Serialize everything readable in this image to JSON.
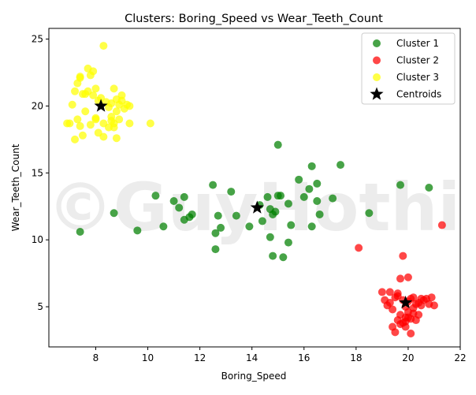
{
  "chart_data": {
    "type": "scatter",
    "title": "Clusters: Boring_Speed vs Wear_Teeth_Count",
    "xlabel": "Boring_Speed",
    "ylabel": "Wear_Teeth_Count",
    "xlim": [
      6.2,
      22.0
    ],
    "ylim": [
      2.0,
      25.8
    ],
    "xticks": [
      8,
      10,
      12,
      14,
      16,
      18,
      20,
      22
    ],
    "yticks": [
      5,
      10,
      15,
      20,
      25
    ],
    "watermark": "©GuyHothi",
    "legend_position": "top-right",
    "series": [
      {
        "name": "Cluster 1",
        "color": "#008000",
        "x": [
          7.4,
          8.7,
          9.6,
          10.3,
          10.6,
          11.0,
          11.2,
          11.4,
          11.4,
          11.6,
          11.7,
          12.5,
          12.6,
          12.6,
          12.7,
          12.8,
          13.2,
          13.4,
          13.9,
          14.3,
          14.4,
          14.6,
          14.7,
          14.7,
          14.8,
          14.8,
          14.9,
          15.0,
          15.0,
          15.1,
          15.2,
          15.4,
          15.4,
          15.5,
          15.8,
          16.0,
          16.2,
          16.3,
          16.3,
          16.5,
          16.5,
          16.6,
          17.1,
          17.4,
          18.5,
          19.7,
          20.8
        ],
        "y": [
          10.6,
          12.0,
          10.7,
          13.3,
          11.0,
          12.9,
          12.4,
          13.2,
          11.5,
          11.7,
          11.9,
          14.1,
          9.3,
          10.5,
          11.8,
          10.9,
          13.6,
          11.8,
          11.0,
          12.6,
          11.4,
          13.2,
          10.2,
          12.3,
          8.8,
          11.9,
          12.1,
          13.3,
          17.1,
          13.3,
          8.7,
          9.8,
          12.7,
          11.1,
          14.5,
          13.2,
          13.8,
          11.0,
          15.5,
          12.9,
          14.2,
          11.9,
          13.1,
          15.6,
          12.0,
          14.1,
          13.9
        ]
      },
      {
        "name": "Cluster 2",
        "color": "#ff0000",
        "x": [
          18.1,
          19.0,
          19.1,
          19.2,
          19.3,
          19.3,
          19.4,
          19.4,
          19.5,
          19.5,
          19.6,
          19.6,
          19.7,
          19.7,
          19.8,
          19.8,
          19.8,
          19.9,
          19.9,
          19.9,
          20.0,
          20.0,
          20.0,
          20.1,
          20.1,
          20.1,
          20.2,
          20.2,
          20.3,
          20.3,
          20.4,
          20.4,
          20.5,
          20.5,
          20.6,
          20.7,
          20.8,
          20.9,
          21.0,
          21.3,
          19.6,
          19.9,
          20.0,
          19.7,
          20.2
        ],
        "y": [
          9.4,
          6.1,
          5.5,
          5.1,
          6.1,
          5.3,
          3.5,
          4.8,
          3.1,
          5.7,
          4.0,
          5.8,
          7.1,
          4.4,
          3.8,
          5.5,
          8.8,
          4.2,
          3.9,
          3.5,
          7.2,
          4.6,
          5.4,
          5.6,
          3.0,
          4.1,
          5.7,
          4.5,
          5.2,
          4.0,
          5.3,
          4.4,
          5.6,
          5.1,
          5.5,
          5.6,
          5.2,
          5.7,
          5.1,
          11.1,
          6.0,
          5.0,
          4.2,
          3.7,
          4.9
        ]
      },
      {
        "name": "Cluster 3",
        "color": "#ffff00",
        "x": [
          6.9,
          7.1,
          7.2,
          7.2,
          7.3,
          7.3,
          7.4,
          7.4,
          7.5,
          7.5,
          7.6,
          7.6,
          7.7,
          7.7,
          7.8,
          7.8,
          7.9,
          7.9,
          8.0,
          8.0,
          8.0,
          8.1,
          8.1,
          8.2,
          8.3,
          8.3,
          8.3,
          8.4,
          8.5,
          8.5,
          8.6,
          8.6,
          8.7,
          8.7,
          8.7,
          8.8,
          8.8,
          8.8,
          8.9,
          8.9,
          9.0,
          9.0,
          9.1,
          9.2,
          9.3,
          9.3,
          10.1,
          7.0,
          7.4,
          8.6
        ],
        "y": [
          18.7,
          20.1,
          21.1,
          17.5,
          19.0,
          21.7,
          22.1,
          18.5,
          17.8,
          20.9,
          19.6,
          20.9,
          22.8,
          21.1,
          18.6,
          22.3,
          22.6,
          20.8,
          19.0,
          21.3,
          19.1,
          18.0,
          20.4,
          20.6,
          17.7,
          24.5,
          18.7,
          20.3,
          18.4,
          19.9,
          19.2,
          20.2,
          18.7,
          21.3,
          18.4,
          17.6,
          19.6,
          20.5,
          20.1,
          19.0,
          20.4,
          20.8,
          19.8,
          20.1,
          18.7,
          20.0,
          18.7,
          18.7,
          22.2,
          18.9
        ]
      }
    ],
    "centroids": {
      "name": "Centroids",
      "color": "#000000",
      "x": [
        14.2,
        19.9,
        8.2
      ],
      "y": [
        12.4,
        5.3,
        20.0
      ]
    }
  }
}
